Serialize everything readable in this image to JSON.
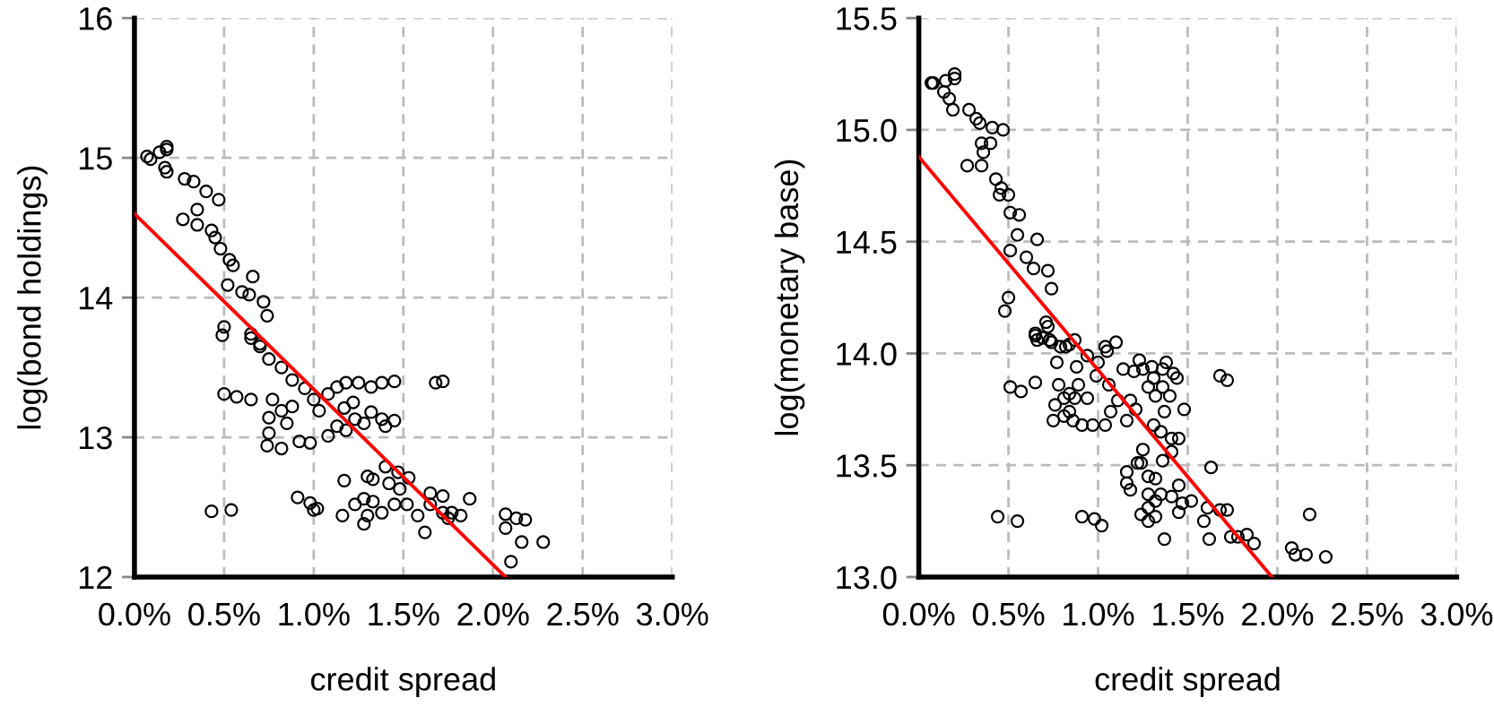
{
  "chart_data": [
    {
      "type": "scatter",
      "xlabel": "credit spread",
      "ylabel": "log(bond holdings)",
      "marker": "circle",
      "grid": true,
      "legend": false,
      "xlim": [
        0,
        3
      ],
      "ylim": [
        12,
        16
      ],
      "xticks": [
        {
          "value": 0,
          "label": "0.0%"
        },
        {
          "value": 0.5,
          "label": "0.5%"
        },
        {
          "value": 1,
          "label": "1.0%"
        },
        {
          "value": 1.5,
          "label": "1.5%"
        },
        {
          "value": 2,
          "label": "2.0%"
        },
        {
          "value": 2.5,
          "label": "2.5%"
        },
        {
          "value": 3,
          "label": "3.0%"
        }
      ],
      "yticks": [
        12,
        13,
        14,
        15,
        16
      ],
      "series": [
        {
          "color": "#000000",
          "x": [
            0.07,
            0.09,
            0.14,
            0.18,
            0.18,
            0.17,
            0.18,
            0.28,
            0.33,
            0.4,
            0.47,
            0.35,
            0.27,
            0.35,
            0.43,
            0.45,
            0.48,
            0.53,
            0.55,
            0.52,
            0.66,
            0.6,
            0.64,
            0.72,
            0.74,
            0.5,
            0.49,
            0.65,
            0.7,
            0.65,
            0.7,
            0.75,
            0.82,
            0.88,
            0.95,
            0.5,
            0.57,
            0.65,
            0.77,
            0.75,
            0.82,
            0.88,
            0.85,
            0.75,
            0.74,
            0.82,
            0.92,
            0.98,
            1.0,
            1.03,
            1.08,
            1.13,
            1.18,
            1.25,
            1.32,
            1.38,
            1.45,
            1.68,
            1.72,
            1.08,
            1.13,
            1.18,
            1.23,
            1.32,
            1.38,
            1.45,
            1.4,
            1.28,
            1.17,
            1.22,
            1.4,
            1.47,
            1.53,
            1.17,
            1.3,
            1.33,
            1.42,
            1.48,
            1.65,
            1.72,
            1.87,
            0.91,
            0.98,
            1.0,
            1.02,
            1.16,
            1.23,
            1.28,
            1.33,
            1.3,
            1.28,
            1.38,
            1.45,
            1.52,
            1.58,
            1.62,
            1.65,
            1.72,
            1.77,
            1.82,
            1.75,
            0.43,
            0.54,
            2.07,
            2.13,
            2.18,
            2.07,
            2.16,
            2.28,
            2.1
          ],
          "values": [
            15.01,
            14.99,
            15.04,
            15.08,
            15.06,
            14.93,
            14.9,
            14.85,
            14.83,
            14.76,
            14.7,
            14.63,
            14.56,
            14.52,
            14.48,
            14.43,
            14.35,
            14.27,
            14.23,
            14.09,
            14.15,
            14.04,
            14.02,
            13.97,
            13.87,
            13.79,
            13.73,
            13.71,
            13.67,
            13.74,
            13.65,
            13.56,
            13.5,
            13.41,
            13.35,
            13.31,
            13.29,
            13.27,
            13.27,
            13.14,
            13.19,
            13.22,
            13.1,
            13.03,
            12.94,
            12.92,
            12.97,
            12.96,
            13.27,
            13.19,
            13.31,
            13.36,
            13.39,
            13.39,
            13.36,
            13.39,
            13.4,
            13.39,
            13.4,
            13.01,
            13.08,
            13.05,
            13.13,
            13.18,
            13.13,
            13.12,
            13.08,
            13.1,
            13.21,
            13.25,
            12.79,
            12.75,
            12.71,
            12.69,
            12.72,
            12.7,
            12.67,
            12.63,
            12.6,
            12.58,
            12.56,
            12.57,
            12.53,
            12.48,
            12.49,
            12.44,
            12.52,
            12.56,
            12.54,
            12.44,
            12.38,
            12.46,
            12.52,
            12.52,
            12.44,
            12.32,
            12.52,
            12.46,
            12.46,
            12.44,
            12.42,
            12.47,
            12.48,
            12.45,
            12.42,
            12.41,
            12.35,
            12.25,
            12.25,
            12.11
          ]
        },
        {
          "type": "line",
          "color": "#ff0000",
          "marker": "none",
          "x": [
            0,
            2.07
          ],
          "values": [
            14.6,
            12.0
          ]
        }
      ]
    },
    {
      "type": "scatter",
      "xlabel": "credit spread",
      "ylabel": "log(monetary base)",
      "marker": "circle",
      "grid": true,
      "legend": false,
      "xlim": [
        0,
        3
      ],
      "ylim": [
        13,
        15.5
      ],
      "xticks": [
        {
          "value": 0,
          "label": "0.0%"
        },
        {
          "value": 0.5,
          "label": "0.5%"
        },
        {
          "value": 1,
          "label": "1.0%"
        },
        {
          "value": 1.5,
          "label": "1.5%"
        },
        {
          "value": 2,
          "label": "2.0%"
        },
        {
          "value": 2.5,
          "label": "2.5%"
        },
        {
          "value": 3,
          "label": "3.0%"
        }
      ],
      "yticks": [
        {
          "value": 13,
          "label": "13.0"
        },
        {
          "value": 13.5,
          "label": "13.5"
        },
        {
          "value": 14,
          "label": "14.0"
        },
        {
          "value": 14.5,
          "label": "14.5"
        },
        {
          "value": 15,
          "label": "15.0"
        },
        {
          "value": 15.5,
          "label": "15.5"
        }
      ],
      "series": [
        {
          "color": "#000000",
          "x": [
            0.07,
            0.08,
            0.15,
            0.2,
            0.2,
            0.14,
            0.17,
            0.19,
            0.28,
            0.32,
            0.34,
            0.41,
            0.47,
            0.35,
            0.4,
            0.36,
            0.27,
            0.35,
            0.43,
            0.46,
            0.45,
            0.5,
            0.51,
            0.56,
            0.55,
            0.66,
            0.51,
            0.6,
            0.64,
            0.72,
            0.74,
            0.5,
            0.48,
            0.71,
            0.65,
            0.69,
            0.73,
            0.79,
            0.84,
            1.1,
            1.05,
            0.65,
            0.72,
            0.66,
            0.74,
            0.77,
            0.82,
            0.87,
            0.88,
            0.94,
            1.0,
            1.04,
            0.99,
            1.06,
            0.51,
            0.57,
            0.65,
            0.78,
            0.84,
            0.89,
            0.76,
            0.81,
            0.87,
            0.94,
            0.75,
            0.81,
            0.86,
            0.91,
            0.97,
            1.04,
            1.07,
            0.84,
            1.11,
            1.18,
            1.21,
            1.16,
            1.14,
            1.2,
            1.25,
            1.3,
            1.36,
            1.42,
            1.23,
            1.38,
            1.31,
            1.44,
            1.28,
            1.36,
            1.4,
            1.32,
            1.68,
            1.72,
            1.48,
            1.37,
            1.31,
            1.35,
            1.41,
            1.45,
            1.41,
            1.36,
            1.25,
            1.22,
            1.24,
            1.63,
            1.16,
            1.16,
            1.18,
            1.28,
            1.32,
            1.28,
            1.35,
            1.32,
            1.41,
            1.45,
            1.47,
            1.52,
            1.45,
            1.28,
            1.24,
            1.28,
            1.32,
            1.37,
            1.59,
            1.62,
            1.61,
            1.68,
            1.72,
            1.74,
            1.78,
            1.83,
            1.87,
            0.44,
            0.55,
            0.91,
            0.98,
            1.02,
            2.18,
            2.08,
            2.1,
            2.16,
            2.27
          ],
          "values": [
            15.21,
            15.21,
            15.22,
            15.25,
            15.23,
            15.17,
            15.14,
            15.09,
            15.09,
            15.05,
            15.03,
            15.01,
            15.0,
            14.94,
            14.94,
            14.9,
            14.84,
            14.84,
            14.78,
            14.74,
            14.71,
            14.71,
            14.63,
            14.62,
            14.53,
            14.51,
            14.46,
            14.43,
            14.38,
            14.37,
            14.29,
            14.25,
            14.19,
            14.14,
            14.08,
            14.07,
            14.06,
            14.03,
            14.04,
            14.05,
            14.01,
            14.09,
            14.12,
            14.06,
            14.05,
            13.96,
            14.03,
            14.06,
            13.94,
            13.99,
            13.96,
            14.03,
            13.9,
            13.86,
            13.85,
            13.83,
            13.87,
            13.86,
            13.82,
            13.86,
            13.77,
            13.8,
            13.8,
            13.8,
            13.7,
            13.72,
            13.7,
            13.68,
            13.68,
            13.68,
            13.74,
            13.74,
            13.79,
            13.79,
            13.75,
            13.7,
            13.93,
            13.92,
            13.93,
            13.94,
            13.93,
            13.91,
            13.97,
            13.96,
            13.89,
            13.89,
            13.85,
            13.85,
            13.81,
            13.81,
            13.9,
            13.88,
            13.75,
            13.74,
            13.68,
            13.65,
            13.62,
            13.62,
            13.56,
            13.52,
            13.57,
            13.51,
            13.51,
            13.49,
            13.47,
            13.42,
            13.39,
            13.45,
            13.44,
            13.37,
            13.37,
            13.34,
            13.36,
            13.41,
            13.33,
            13.34,
            13.29,
            13.31,
            13.28,
            13.25,
            13.27,
            13.17,
            13.25,
            13.17,
            13.31,
            13.3,
            13.3,
            13.18,
            13.18,
            13.19,
            13.15,
            13.27,
            13.25,
            13.27,
            13.26,
            13.23,
            13.28,
            13.13,
            13.1,
            13.1,
            13.09
          ]
        },
        {
          "type": "line",
          "color": "#ff0000",
          "marker": "none",
          "x": [
            0,
            1.97
          ],
          "values": [
            14.88,
            13.0
          ]
        }
      ]
    }
  ]
}
